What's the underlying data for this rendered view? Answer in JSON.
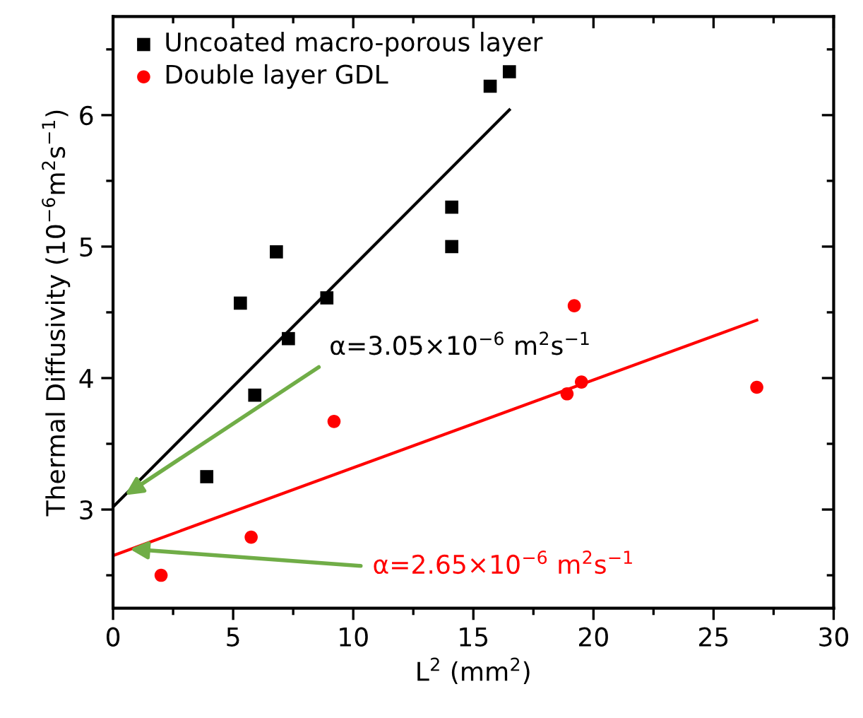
{
  "chart_data": {
    "type": "scatter",
    "xlabel": "L$^{2}$ (mm$^{2}$)",
    "ylabel": "Thermal Diffusivity (10$^{−6}$m$^{2}$s$^{−1}$)",
    "xlim": [
      0,
      30
    ],
    "ylim": [
      2.25,
      6.75
    ],
    "xticks": [
      0,
      5,
      10,
      15,
      20,
      25,
      30
    ],
    "yticks": [
      3,
      4,
      5,
      6
    ],
    "grid": false,
    "legend": "top left",
    "series": [
      {
        "name": "Uncoated macro-porous layer",
        "color": "#000000",
        "marker": "square",
        "x": [
          3.9,
          5.3,
          5.9,
          6.8,
          7.3,
          8.9,
          14.1,
          14.1,
          15.7,
          16.5
        ],
        "values": [
          3.25,
          4.57,
          3.87,
          4.96,
          4.3,
          4.61,
          5.3,
          5.0,
          6.22,
          6.33
        ]
      },
      {
        "name": "Double layer GDL",
        "color": "#ff0000",
        "marker": "circle",
        "x": [
          2.0,
          5.75,
          9.2,
          18.9,
          19.2,
          19.5,
          26.8
        ],
        "values": [
          2.5,
          2.79,
          3.67,
          3.88,
          4.55,
          3.97,
          3.93
        ]
      },
      {
        "type": "line",
        "color": "#000000",
        "x": [
          0,
          16.5
        ],
        "values": [
          3.02,
          6.04
        ]
      },
      {
        "type": "line",
        "color": "#ff0000",
        "x": [
          0,
          26.8
        ],
        "values": [
          2.65,
          4.44
        ]
      }
    ],
    "annotations": [
      {
        "text": "α=3.05×10$^{−6}$ m$^{2}$s$^{−1}$",
        "x": 0.5,
        "y": 3.11
      },
      {
        "text": "α=2.65×10$^{−6}$ m$^{2}$s$^{−1}$",
        "x": 0.7,
        "y": 2.7
      }
    ]
  }
}
